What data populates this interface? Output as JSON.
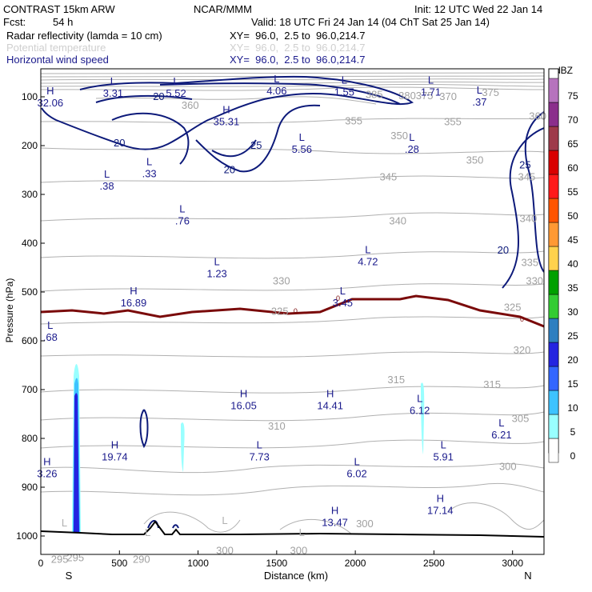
{
  "header": {
    "model": "CONTRAST 15km ARW",
    "org": "NCAR/MMM",
    "init": "Init: 12 UTC Wed 22 Jan 14",
    "fcst_label": "Fcst:",
    "fcst_value": "54 h",
    "valid": "Valid: 18 UTC Fri 24 Jan 14 (04 ChT Sat 25 Jan 14)",
    "fields": [
      {
        "name": "Radar reflectivity (lamda = 10 cm)",
        "xy": "XY=  96.0,  2.5 to  96.0,214.7"
      },
      {
        "name": "Potential temperature",
        "xy": "XY=  96.0,  2.5 to  96.0,214.7"
      },
      {
        "name": "Horizontal wind speed",
        "xy": "XY=  96.0,  2.5 to  96.0,214.7"
      }
    ]
  },
  "chart_data": {
    "type": "cross-section",
    "xlabel": "Distance (km)",
    "ylabel": "Pressure (hPa)",
    "xlim": [
      0,
      3200
    ],
    "ylim": [
      1050,
      60
    ],
    "x_ticks": [
      0,
      500,
      1000,
      1500,
      2000,
      2500,
      3000
    ],
    "y_ticks": [
      100,
      200,
      300,
      400,
      500,
      600,
      700,
      800,
      900,
      1000
    ],
    "endpoints": {
      "left": "S",
      "right": "N"
    },
    "colorbar": {
      "unit": "dBZ",
      "levels": [
        0,
        5,
        10,
        15,
        20,
        25,
        30,
        35,
        40,
        45,
        50,
        55,
        60,
        65,
        70,
        75
      ],
      "colors": [
        "#ffffff",
        "#99ffff",
        "#3dc3ff",
        "#3366ff",
        "#2424e0",
        "#2e7fc0",
        "#33cc33",
        "#00a000",
        "#ffd24d",
        "#ff9933",
        "#ff5500",
        "#ff1a1a",
        "#d90000",
        "#9e3a4a",
        "#8b2f8c",
        "#b673bd"
      ]
    },
    "wind_contour_labels": [
      {
        "text": "20",
        "x": 750,
        "p": 100
      },
      {
        "text": "20",
        "x": 500,
        "p": 195
      },
      {
        "text": "25",
        "x": 1370,
        "p": 200
      },
      {
        "text": "20",
        "x": 1200,
        "p": 250
      },
      {
        "text": "25",
        "x": 3080,
        "p": 240
      },
      {
        "text": "20",
        "x": 2940,
        "p": 415
      }
    ],
    "theta_contour_labels": [
      {
        "text": "385",
        "x": 2120,
        "p": 96
      },
      {
        "text": "380",
        "x": 2330,
        "p": 98
      },
      {
        "text": "375",
        "x": 2440,
        "p": 98
      },
      {
        "text": "370",
        "x": 2590,
        "p": 100
      },
      {
        "text": "375",
        "x": 2860,
        "p": 92
      },
      {
        "text": "360",
        "x": 950,
        "p": 118
      },
      {
        "text": "355",
        "x": 1990,
        "p": 150
      },
      {
        "text": "355",
        "x": 2620,
        "p": 152
      },
      {
        "text": "360",
        "x": 3160,
        "p": 140
      },
      {
        "text": "350",
        "x": 2280,
        "p": 180
      },
      {
        "text": "350",
        "x": 2760,
        "p": 230
      },
      {
        "text": "345",
        "x": 2210,
        "p": 265
      },
      {
        "text": "345",
        "x": 3090,
        "p": 265
      },
      {
        "text": "340",
        "x": 2270,
        "p": 355
      },
      {
        "text": "340",
        "x": 3100,
        "p": 350
      },
      {
        "text": "335",
        "x": 3110,
        "p": 440
      },
      {
        "text": "330",
        "x": 1530,
        "p": 478
      },
      {
        "text": "330",
        "x": 3140,
        "p": 478
      },
      {
        "text": "325",
        "x": 1520,
        "p": 540
      },
      {
        "text": "325",
        "x": 3000,
        "p": 532
      },
      {
        "text": "320",
        "x": 3060,
        "p": 620
      },
      {
        "text": "315",
        "x": 2870,
        "p": 690
      },
      {
        "text": "315",
        "x": 2260,
        "p": 680
      },
      {
        "text": "310",
        "x": 1500,
        "p": 775
      },
      {
        "text": "305",
        "x": 3050,
        "p": 760
      },
      {
        "text": "300",
        "x": 2970,
        "p": 858
      },
      {
        "text": "300",
        "x": 2060,
        "p": 975
      },
      {
        "text": "300",
        "x": 1170,
        "p": 1030
      },
      {
        "text": "300",
        "x": 1640,
        "p": 1030
      },
      {
        "text": "295",
        "x": 120,
        "p": 1048
      },
      {
        "text": "295",
        "x": 220,
        "p": 1045
      },
      {
        "text": "290",
        "x": 640,
        "p": 1048
      }
    ],
    "freezing_label": "0",
    "highs_lows": [
      {
        "type": "L",
        "value": "3.31",
        "x": 460,
        "p": 90
      },
      {
        "type": "L",
        "value": "5.52",
        "x": 860,
        "p": 90
      },
      {
        "type": "L",
        "value": "4.06",
        "x": 1500,
        "p": 85
      },
      {
        "type": "L",
        "value": "1.55",
        "x": 1930,
        "p": 88
      },
      {
        "type": "L",
        "value": "1.71",
        "x": 2480,
        "p": 88
      },
      {
        "type": "L",
        "value": ".37",
        "x": 2790,
        "p": 108
      },
      {
        "type": "H",
        "value": "32.06",
        "x": 60,
        "p": 110
      },
      {
        "type": "H",
        "value": "35.31",
        "x": 1180,
        "p": 148
      },
      {
        "type": "L",
        "value": "5.56",
        "x": 1660,
        "p": 205
      },
      {
        "type": "L",
        "value": ".28",
        "x": 2360,
        "p": 205
      },
      {
        "type": "L",
        "value": ".33",
        "x": 690,
        "p": 255
      },
      {
        "type": "L",
        "value": ".38",
        "x": 420,
        "p": 280
      },
      {
        "type": "L",
        "value": ".76",
        "x": 900,
        "p": 352
      },
      {
        "type": "L",
        "value": "4.72",
        "x": 2080,
        "p": 435
      },
      {
        "type": "L",
        "value": "1.23",
        "x": 1120,
        "p": 460
      },
      {
        "type": "H",
        "value": "16.89",
        "x": 590,
        "p": 520
      },
      {
        "type": "L",
        "value": "3.45",
        "x": 1920,
        "p": 520
      },
      {
        "type": "L",
        "value": ".68",
        "x": 60,
        "p": 590
      },
      {
        "type": "H",
        "value": "16.05",
        "x": 1290,
        "p": 730
      },
      {
        "type": "H",
        "value": "14.41",
        "x": 1840,
        "p": 730
      },
      {
        "type": "L",
        "value": "6.12",
        "x": 2410,
        "p": 740
      },
      {
        "type": "L",
        "value": "6.21",
        "x": 2930,
        "p": 790
      },
      {
        "type": "H",
        "value": "19.74",
        "x": 470,
        "p": 835
      },
      {
        "type": "L",
        "value": "7.73",
        "x": 1390,
        "p": 835
      },
      {
        "type": "L",
        "value": "5.91",
        "x": 2560,
        "p": 835
      },
      {
        "type": "H",
        "value": "3.26",
        "x": 40,
        "p": 870
      },
      {
        "type": "L",
        "value": "6.02",
        "x": 2010,
        "p": 870
      },
      {
        "type": "H",
        "value": "17.14",
        "x": 2540,
        "p": 945
      },
      {
        "type": "H",
        "value": "13.47",
        "x": 1870,
        "p": 970
      }
    ],
    "ground_labels": [
      {
        "text": "L",
        "x": 150,
        "p": 980
      },
      {
        "text": "L",
        "x": 1170,
        "p": 975
      },
      {
        "text": "L",
        "x": 1660,
        "p": 1000
      },
      {
        "text": "L",
        "x": 680,
        "p": 1000
      }
    ]
  }
}
